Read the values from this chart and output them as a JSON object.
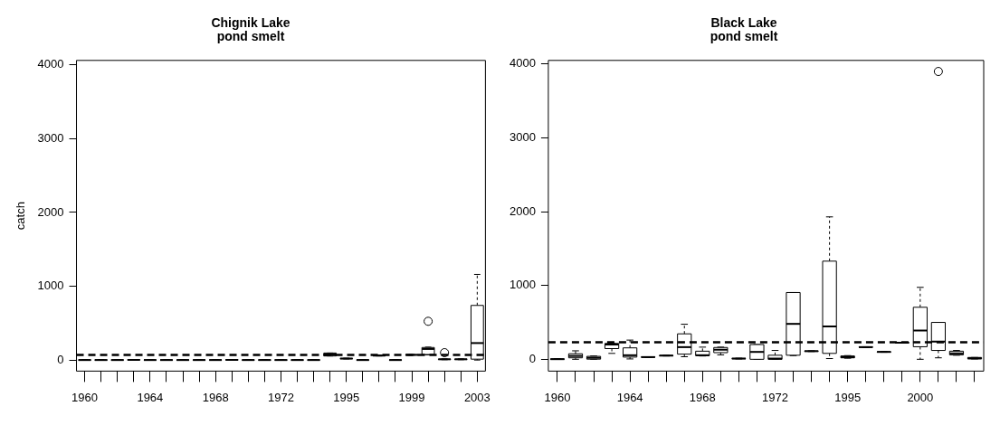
{
  "chart_data": [
    {
      "type": "box",
      "title": "Chignik Lake\npond smelt",
      "ylabel": "catch",
      "categories": [
        "1960",
        null,
        null,
        null,
        "1964",
        null,
        null,
        null,
        "1968",
        null,
        null,
        null,
        "1972",
        null,
        null,
        null,
        "1995",
        null,
        null,
        null,
        "1999",
        null,
        null,
        null,
        "2003"
      ],
      "boxes": [
        {
          "low": 0,
          "q1": 0,
          "median": 0,
          "q3": 2,
          "high": 3
        },
        {
          "low": 0,
          "q1": 0,
          "median": 0,
          "q3": 2,
          "high": 3
        },
        {
          "low": 0,
          "q1": 0,
          "median": 0,
          "q3": 2,
          "high": 3
        },
        {
          "low": 0,
          "q1": 0,
          "median": 2,
          "q3": 5,
          "high": 8
        },
        {
          "low": 0,
          "q1": 0,
          "median": 0,
          "q3": 2,
          "high": 3
        },
        {
          "low": 0,
          "q1": 0,
          "median": 0,
          "q3": 2,
          "high": 3
        },
        {
          "low": 0,
          "q1": 0,
          "median": 0,
          "q3": 2,
          "high": 3
        },
        {
          "low": 0,
          "q1": 0,
          "median": 0,
          "q3": 2,
          "high": 3
        },
        {
          "low": 0,
          "q1": 0,
          "median": 0,
          "q3": 2,
          "high": 3
        },
        {
          "low": 0,
          "q1": 0,
          "median": 2,
          "q3": 5,
          "high": 8
        },
        {
          "low": 0,
          "q1": 0,
          "median": 0,
          "q3": 2,
          "high": 3
        },
        {
          "low": 0,
          "q1": 0,
          "median": 0,
          "q3": 2,
          "high": 3
        },
        {
          "low": 0,
          "q1": 0,
          "median": 0,
          "q3": 2,
          "high": 3
        },
        {
          "low": 0,
          "q1": 0,
          "median": 0,
          "q3": 2,
          "high": 3
        },
        {
          "low": 0,
          "q1": 0,
          "median": 0,
          "q3": 2,
          "high": 3
        },
        {
          "low": 55,
          "q1": 55,
          "median": 75,
          "q3": 95,
          "high": 95
        },
        {
          "low": 15,
          "q1": 18,
          "median": 20,
          "q3": 22,
          "high": 25
        },
        {
          "low": 0,
          "q1": 0,
          "median": 0,
          "q3": 2,
          "high": 3
        },
        {
          "low": 55,
          "q1": 58,
          "median": 60,
          "q3": 62,
          "high": 65
        },
        {
          "low": 0,
          "q1": 0,
          "median": 0,
          "q3": 2,
          "high": 3
        },
        {
          "low": 65,
          "q1": 68,
          "median": 70,
          "q3": 72,
          "high": 75
        },
        {
          "low": 70,
          "q1": 75,
          "median": 150,
          "q3": 170,
          "high": 175,
          "outliers": [
            525
          ]
        },
        {
          "low": 5,
          "q1": 8,
          "median": 10,
          "q3": 12,
          "high": 15,
          "outliers": [
            100
          ]
        },
        {
          "low": 5,
          "q1": 8,
          "median": 10,
          "q3": 12,
          "high": 15
        },
        {
          "low": 0,
          "q1": 12,
          "median": 230,
          "q3": 740,
          "high": 1160
        }
      ],
      "ylim": [
        -150,
        4060
      ],
      "yticks": [
        0,
        1000,
        2000,
        3000,
        4000
      ],
      "ref_lines": [
        {
          "axis": "y",
          "value": 70,
          "line_style": "dashed"
        }
      ]
    },
    {
      "type": "box",
      "title": "Black Lake\npond smelt",
      "categories": [
        "1960",
        null,
        null,
        null,
        "1964",
        null,
        null,
        null,
        "1968",
        null,
        null,
        null,
        "1972",
        null,
        null,
        null,
        "1995",
        null,
        null,
        null,
        "2000",
        null,
        null,
        null
      ],
      "boxes": [
        {
          "low": 0,
          "q1": 0,
          "median": 2,
          "q3": 5,
          "high": 8
        },
        {
          "low": 0,
          "q1": 20,
          "median": 45,
          "q3": 75,
          "high": 115
        },
        {
          "low": 0,
          "q1": 2,
          "median": 20,
          "q3": 40,
          "high": 45
        },
        {
          "low": 80,
          "q1": 145,
          "median": 200,
          "q3": 215,
          "high": 215
        },
        {
          "low": 5,
          "q1": 30,
          "median": 55,
          "q3": 155,
          "high": 260
        },
        {
          "low": 25,
          "q1": 28,
          "median": 30,
          "q3": 32,
          "high": 35
        },
        {
          "low": 45,
          "q1": 48,
          "median": 50,
          "q3": 52,
          "high": 55
        },
        {
          "low": 35,
          "q1": 70,
          "median": 165,
          "q3": 345,
          "high": 475
        },
        {
          "low": 45,
          "q1": 50,
          "median": 55,
          "q3": 110,
          "high": 165
        },
        {
          "low": 60,
          "q1": 90,
          "median": 130,
          "q3": 160,
          "high": 165
        },
        {
          "low": 5,
          "q1": 8,
          "median": 10,
          "q3": 12,
          "high": 15
        },
        {
          "low": 0,
          "q1": 0,
          "median": 100,
          "q3": 200,
          "high": 200
        },
        {
          "low": 0,
          "q1": 0,
          "median": 10,
          "q3": 55,
          "high": 120
        },
        {
          "low": 50,
          "q1": 55,
          "median": 480,
          "q3": 905,
          "high": 905
        },
        {
          "low": 105,
          "q1": 108,
          "median": 110,
          "q3": 112,
          "high": 115
        },
        {
          "low": 10,
          "q1": 80,
          "median": 445,
          "q3": 1330,
          "high": 1930
        },
        {
          "low": 15,
          "q1": 20,
          "median": 30,
          "q3": 45,
          "high": 50
        },
        {
          "low": 160,
          "q1": 163,
          "median": 165,
          "q3": 167,
          "high": 170
        },
        {
          "low": 95,
          "q1": 98,
          "median": 100,
          "q3": 102,
          "high": 105
        },
        {
          "low": 220,
          "q1": 223,
          "median": 225,
          "q3": 227,
          "high": 230
        },
        {
          "low": 0,
          "q1": 170,
          "median": 390,
          "q3": 705,
          "high": 975
        },
        {
          "low": 20,
          "q1": 120,
          "median": 240,
          "q3": 500,
          "high": 500,
          "outliers": [
            3900
          ]
        },
        {
          "low": 55,
          "q1": 60,
          "median": 80,
          "q3": 110,
          "high": 120
        },
        {
          "low": 5,
          "q1": 5,
          "median": 15,
          "q3": 25,
          "high": 25
        }
      ],
      "ylim": [
        -160,
        4050
      ],
      "yticks": [
        0,
        1000,
        2000,
        3000,
        4000
      ],
      "ref_lines": [
        {
          "axis": "y",
          "value": 230,
          "line_style": "dashed"
        }
      ]
    }
  ]
}
